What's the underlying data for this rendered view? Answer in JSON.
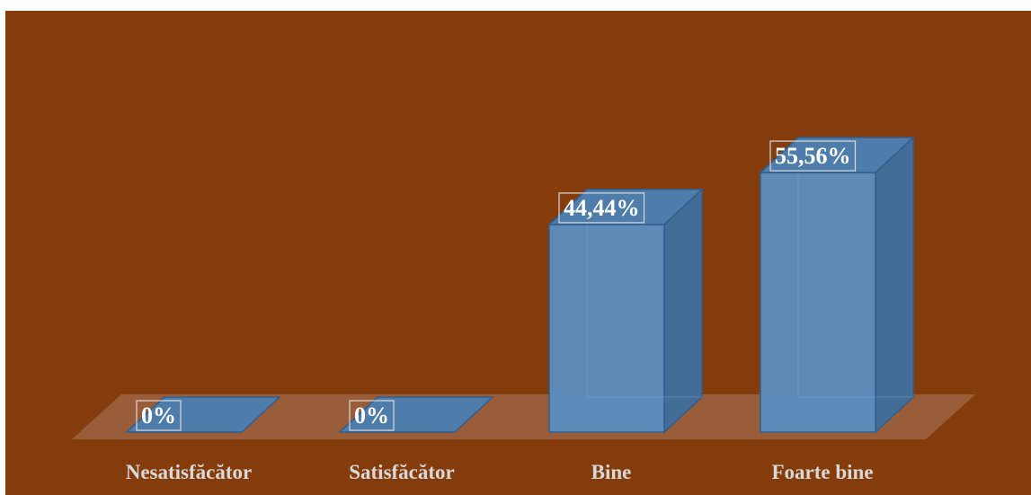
{
  "chart_data": {
    "type": "bar",
    "style": "3d-column",
    "categories": [
      "Nesatisfăcător",
      "Satisfăcător",
      "Bine",
      "Foarte bine"
    ],
    "values": [
      0,
      0,
      44.44,
      55.56
    ],
    "data_labels": [
      "0%",
      "0%",
      "44,44%",
      "55,56%"
    ],
    "title": "",
    "xlabel": "",
    "ylabel": "",
    "ylim": [
      0,
      60
    ],
    "grid": false,
    "legend": "none",
    "colors": {
      "background": "#843c0c",
      "floor": "#a0684a",
      "bar_front": "#5b8ec1",
      "bar_side": "#436d97",
      "bar_top": "#4e7cab",
      "bar_edge": "#2f5e8e",
      "category_text": "#d9d9d9",
      "label_text": "#ffffff",
      "label_border": "#d9d9d9"
    }
  }
}
